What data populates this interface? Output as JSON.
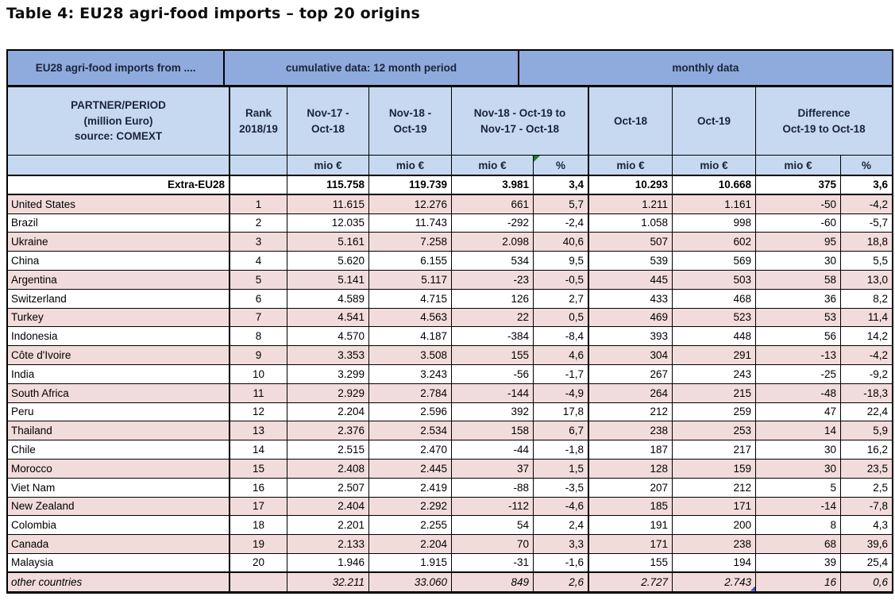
{
  "title": "Table 4: EU28 agri-food imports – top 20 origins",
  "colors": {
    "header_blue": "#8FAADC",
    "header_light_blue": "#C6D9F1",
    "row_pink": "#F2DCDB",
    "row_white": "#FFFFFF",
    "border": "#000000",
    "header_text": "#1A2438",
    "comment_marker_green": "#1E7B1E",
    "comment_marker_blue": "#4040D0"
  },
  "headers": {
    "imports_from": "EU28 agri-food imports from ....",
    "cumulative": "cumulative data: 12 month period",
    "monthly": "monthly data",
    "partner": {
      "l1": "PARTNER/PERIOD",
      "l2": "(million Euro)",
      "l3": "source: COMEXT"
    },
    "rank": {
      "l1": "Rank",
      "l2": "2018/19"
    },
    "cum_prev": {
      "l1": "Nov-17 -",
      "l2": "Oct-18"
    },
    "cum_curr": {
      "l1": "Nov-18 -",
      "l2": "Oct-19"
    },
    "cum_diff": {
      "l1": "Nov-18 - Oct-19 to",
      "l2": "Nov-17 - Oct-18"
    },
    "oct18": "Oct-18",
    "oct19": "Oct-19",
    "mon_diff": {
      "l1": "Difference",
      "l2": "Oct-19 to Oct-18"
    },
    "units": {
      "mio": "mio €",
      "pct": "%"
    }
  },
  "table": {
    "rows": [
      {
        "name": "Extra-EU28",
        "rank": "",
        "cum_prev": "115.758",
        "cum_curr": "119.739",
        "cum_diff": "3.981",
        "cum_pct": "3,4",
        "oct18": "10.293",
        "oct19": "10.668",
        "mon_diff": "375",
        "mon_pct": "3,6",
        "shaded": false,
        "emphasis": "bold",
        "thick_bottom": true
      },
      {
        "name": "United States",
        "rank": "1",
        "cum_prev": "11.615",
        "cum_curr": "12.276",
        "cum_diff": "661",
        "cum_pct": "5,7",
        "oct18": "1.211",
        "oct19": "1.161",
        "mon_diff": "-50",
        "mon_pct": "-4,2",
        "shaded": true,
        "emphasis": ""
      },
      {
        "name": "Brazil",
        "rank": "2",
        "cum_prev": "12.035",
        "cum_curr": "11.743",
        "cum_diff": "-292",
        "cum_pct": "-2,4",
        "oct18": "1.058",
        "oct19": "998",
        "mon_diff": "-60",
        "mon_pct": "-5,7",
        "shaded": false,
        "emphasis": ""
      },
      {
        "name": "Ukraine",
        "rank": "3",
        "cum_prev": "5.161",
        "cum_curr": "7.258",
        "cum_diff": "2.098",
        "cum_pct": "40,6",
        "oct18": "507",
        "oct19": "602",
        "mon_diff": "95",
        "mon_pct": "18,8",
        "shaded": true,
        "emphasis": ""
      },
      {
        "name": "China",
        "rank": "4",
        "cum_prev": "5.620",
        "cum_curr": "6.155",
        "cum_diff": "534",
        "cum_pct": "9,5",
        "oct18": "539",
        "oct19": "569",
        "mon_diff": "30",
        "mon_pct": "5,5",
        "shaded": false,
        "emphasis": ""
      },
      {
        "name": "Argentina",
        "rank": "5",
        "cum_prev": "5.141",
        "cum_curr": "5.117",
        "cum_diff": "-23",
        "cum_pct": "-0,5",
        "oct18": "445",
        "oct19": "503",
        "mon_diff": "58",
        "mon_pct": "13,0",
        "shaded": true,
        "emphasis": ""
      },
      {
        "name": "Switzerland",
        "rank": "6",
        "cum_prev": "4.589",
        "cum_curr": "4.715",
        "cum_diff": "126",
        "cum_pct": "2,7",
        "oct18": "433",
        "oct19": "468",
        "mon_diff": "36",
        "mon_pct": "8,2",
        "shaded": false,
        "emphasis": ""
      },
      {
        "name": "Turkey",
        "rank": "7",
        "cum_prev": "4.541",
        "cum_curr": "4.563",
        "cum_diff": "22",
        "cum_pct": "0,5",
        "oct18": "469",
        "oct19": "523",
        "mon_diff": "53",
        "mon_pct": "11,4",
        "shaded": true,
        "emphasis": ""
      },
      {
        "name": "Indonesia",
        "rank": "8",
        "cum_prev": "4.570",
        "cum_curr": "4.187",
        "cum_diff": "-384",
        "cum_pct": "-8,4",
        "oct18": "393",
        "oct19": "448",
        "mon_diff": "56",
        "mon_pct": "14,2",
        "shaded": false,
        "emphasis": ""
      },
      {
        "name": "Côte d'Ivoire",
        "rank": "9",
        "cum_prev": "3.353",
        "cum_curr": "3.508",
        "cum_diff": "155",
        "cum_pct": "4,6",
        "oct18": "304",
        "oct19": "291",
        "mon_diff": "-13",
        "mon_pct": "-4,2",
        "shaded": true,
        "emphasis": ""
      },
      {
        "name": "India",
        "rank": "10",
        "cum_prev": "3.299",
        "cum_curr": "3.243",
        "cum_diff": "-56",
        "cum_pct": "-1,7",
        "oct18": "267",
        "oct19": "243",
        "mon_diff": "-25",
        "mon_pct": "-9,2",
        "shaded": false,
        "emphasis": ""
      },
      {
        "name": "South Africa",
        "rank": "11",
        "cum_prev": "2.929",
        "cum_curr": "2.784",
        "cum_diff": "-144",
        "cum_pct": "-4,9",
        "oct18": "264",
        "oct19": "215",
        "mon_diff": "-48",
        "mon_pct": "-18,3",
        "shaded": true,
        "emphasis": ""
      },
      {
        "name": "Peru",
        "rank": "12",
        "cum_prev": "2.204",
        "cum_curr": "2.596",
        "cum_diff": "392",
        "cum_pct": "17,8",
        "oct18": "212",
        "oct19": "259",
        "mon_diff": "47",
        "mon_pct": "22,4",
        "shaded": false,
        "emphasis": ""
      },
      {
        "name": "Thailand",
        "rank": "13",
        "cum_prev": "2.376",
        "cum_curr": "2.534",
        "cum_diff": "158",
        "cum_pct": "6,7",
        "oct18": "238",
        "oct19": "253",
        "mon_diff": "14",
        "mon_pct": "5,9",
        "shaded": true,
        "emphasis": ""
      },
      {
        "name": "Chile",
        "rank": "14",
        "cum_prev": "2.515",
        "cum_curr": "2.470",
        "cum_diff": "-44",
        "cum_pct": "-1,8",
        "oct18": "187",
        "oct19": "217",
        "mon_diff": "30",
        "mon_pct": "16,2",
        "shaded": false,
        "emphasis": ""
      },
      {
        "name": "Morocco",
        "rank": "15",
        "cum_prev": "2.408",
        "cum_curr": "2.445",
        "cum_diff": "37",
        "cum_pct": "1,5",
        "oct18": "128",
        "oct19": "159",
        "mon_diff": "30",
        "mon_pct": "23,5",
        "shaded": true,
        "emphasis": ""
      },
      {
        "name": "Viet Nam",
        "rank": "16",
        "cum_prev": "2.507",
        "cum_curr": "2.419",
        "cum_diff": "-88",
        "cum_pct": "-3,5",
        "oct18": "207",
        "oct19": "212",
        "mon_diff": "5",
        "mon_pct": "2,5",
        "shaded": false,
        "emphasis": ""
      },
      {
        "name": "New Zealand",
        "rank": "17",
        "cum_prev": "2.404",
        "cum_curr": "2.292",
        "cum_diff": "-112",
        "cum_pct": "-4,6",
        "oct18": "185",
        "oct19": "171",
        "mon_diff": "-14",
        "mon_pct": "-7,8",
        "shaded": true,
        "emphasis": ""
      },
      {
        "name": "Colombia",
        "rank": "18",
        "cum_prev": "2.201",
        "cum_curr": "2.255",
        "cum_diff": "54",
        "cum_pct": "2,4",
        "oct18": "191",
        "oct19": "200",
        "mon_diff": "8",
        "mon_pct": "4,3",
        "shaded": false,
        "emphasis": ""
      },
      {
        "name": "Canada",
        "rank": "19",
        "cum_prev": "2.133",
        "cum_curr": "2.204",
        "cum_diff": "70",
        "cum_pct": "3,3",
        "oct18": "171",
        "oct19": "238",
        "mon_diff": "68",
        "mon_pct": "39,6",
        "shaded": true,
        "emphasis": ""
      },
      {
        "name": "Malaysia",
        "rank": "20",
        "cum_prev": "1.946",
        "cum_curr": "1.915",
        "cum_diff": "-31",
        "cum_pct": "-1,6",
        "oct18": "155",
        "oct19": "194",
        "mon_diff": "39",
        "mon_pct": "25,4",
        "shaded": false,
        "emphasis": "",
        "thick_bottom": true
      },
      {
        "name": "other countries",
        "rank": "",
        "cum_prev": "32.211",
        "cum_curr": "33.060",
        "cum_diff": "849",
        "cum_pct": "2,6",
        "oct18": "2.727",
        "oct19": "2.743",
        "mon_diff": "16",
        "mon_pct": "0,6",
        "shaded": true,
        "emphasis": "italic",
        "oct19_marker": true
      }
    ]
  }
}
